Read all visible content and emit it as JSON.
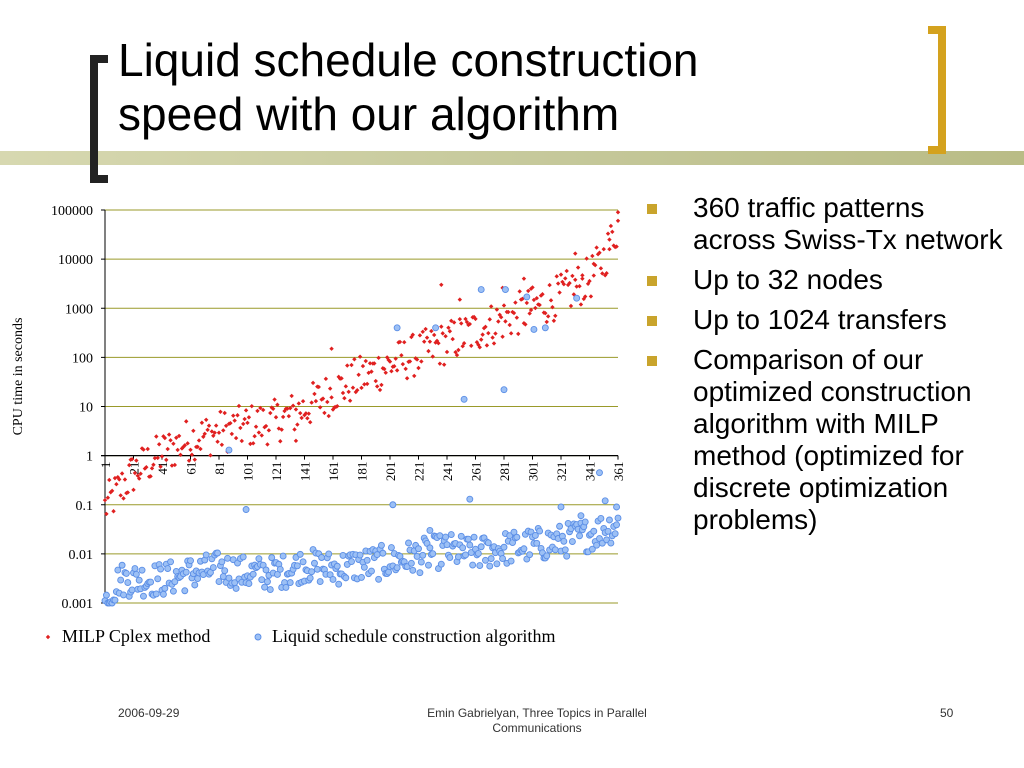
{
  "slide": {
    "title_line1": "Liquid schedule construction",
    "title_line2": "speed with our algorithm",
    "footer_date": "2006-09-29",
    "footer_center_line1": "Emin Gabrielyan, Three Topics in Parallel",
    "footer_center_line2": "Communications",
    "footer_page": "50",
    "accent_color": "#d4a21e",
    "bullet_color": "#c9a42c"
  },
  "bullets": [
    "360 traffic patterns across Swiss-Tx network",
    "Up to 32 nodes",
    "Up to 1024 transfers",
    "Comparison of our optimized construction algorithm with MILP method (optimized for discrete optimization problems)"
  ],
  "chart_data": {
    "type": "scatter",
    "ylabel": "CPU time in seconds",
    "yscale": "log",
    "ylim": [
      0.001,
      100000
    ],
    "yticks": [
      "100000",
      "10000",
      "1000",
      "100",
      "10",
      "1",
      "0.1",
      "0.01",
      "0.001"
    ],
    "xlim": [
      1,
      361
    ],
    "xticks": [
      "1",
      "21",
      "41",
      "61",
      "81",
      "101",
      "121",
      "141",
      "161",
      "181",
      "201",
      "221",
      "241",
      "261",
      "281",
      "301",
      "321",
      "341",
      "361"
    ],
    "grid": true,
    "grid_color": "#9a9a2a",
    "legend": "bottom",
    "series": [
      {
        "name": "MILP Cplex method",
        "color": "#e02020",
        "marker": "diamond",
        "trend": [
          [
            1,
            0.09
          ],
          [
            11,
            0.2
          ],
          [
            21,
            0.45
          ],
          [
            41,
            1.1
          ],
          [
            61,
            2.2
          ],
          [
            81,
            3
          ],
          [
            101,
            4
          ],
          [
            121,
            5
          ],
          [
            141,
            9
          ],
          [
            161,
            20
          ],
          [
            181,
            40
          ],
          [
            201,
            70
          ],
          [
            221,
            120
          ],
          [
            241,
            200
          ],
          [
            261,
            350
          ],
          [
            281,
            600
          ],
          [
            301,
            1000
          ],
          [
            321,
            1800
          ],
          [
            341,
            4000
          ],
          [
            351,
            10000
          ],
          [
            361,
            50000
          ]
        ],
        "notable": [
          [
            361,
            90000
          ],
          [
            336,
            4000
          ],
          [
            331,
            13000
          ],
          [
            344,
            8000
          ],
          [
            355,
            25000
          ],
          [
            300,
            2500
          ],
          [
            295,
            4000
          ],
          [
            280,
            2600
          ],
          [
            250,
            1500
          ],
          [
            237,
            3000
          ],
          [
            160,
            150
          ],
          [
            135,
            2
          ]
        ]
      },
      {
        "name": "Liquid schedule construction algorithm",
        "color": "#5b8ee6",
        "marker": "circle",
        "trend": [
          [
            1,
            0.001
          ],
          [
            11,
            0.003
          ],
          [
            21,
            0.003
          ],
          [
            41,
            0.003
          ],
          [
            61,
            0.004
          ],
          [
            81,
            0.005
          ],
          [
            101,
            0.004
          ],
          [
            121,
            0.004
          ],
          [
            141,
            0.006
          ],
          [
            161,
            0.005
          ],
          [
            181,
            0.006
          ],
          [
            201,
            0.007
          ],
          [
            221,
            0.009
          ],
          [
            241,
            0.012
          ],
          [
            261,
            0.01
          ],
          [
            281,
            0.013
          ],
          [
            301,
            0.015
          ],
          [
            321,
            0.018
          ],
          [
            341,
            0.025
          ],
          [
            361,
            0.04
          ]
        ],
        "notable": [
          [
            88,
            1.3
          ],
          [
            265,
            2400
          ],
          [
            282,
            2400
          ],
          [
            297,
            1700
          ],
          [
            310,
            400
          ],
          [
            206,
            400
          ],
          [
            233,
            400
          ],
          [
            253,
            14
          ],
          [
            281,
            22
          ],
          [
            332,
            1600
          ],
          [
            302,
            370
          ],
          [
            348,
            0.45
          ],
          [
            321,
            0.09
          ],
          [
            335,
            0.06
          ],
          [
            257,
            0.13
          ],
          [
            203,
            0.1
          ],
          [
            100,
            0.08
          ],
          [
            229,
            0.03
          ],
          [
            360,
            0.09
          ],
          [
            352,
            0.12
          ]
        ]
      }
    ]
  }
}
